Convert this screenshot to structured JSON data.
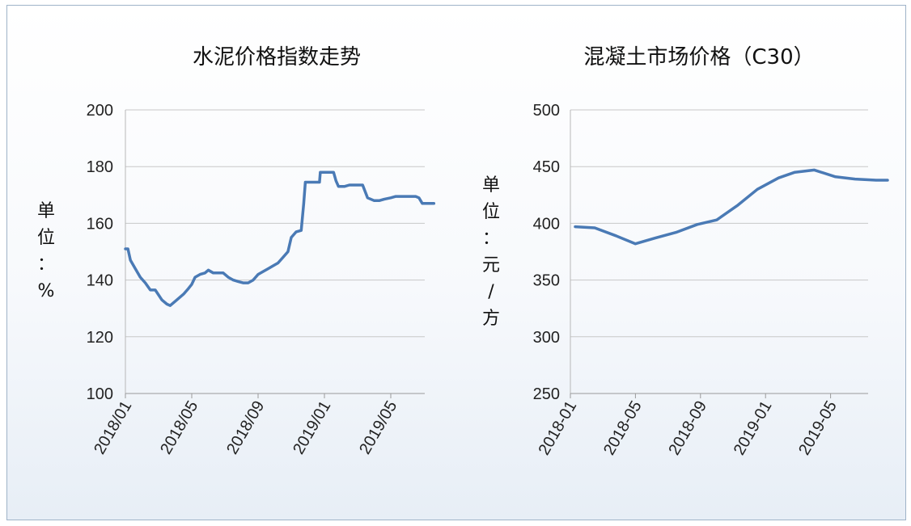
{
  "chart_data": [
    {
      "type": "line",
      "title": "水泥价格指数走势",
      "ylabel": [
        "单",
        "位",
        "：",
        "%"
      ],
      "xlabel": "",
      "ylim": [
        100,
        200
      ],
      "yticks": [
        "100",
        "120",
        "140",
        "160",
        "180",
        "200"
      ],
      "xticks": [
        "2018/01",
        "2018/05",
        "2018/09",
        "2019/01",
        "2019/05"
      ],
      "grid": true,
      "legend": "none",
      "line_color": "#4a7ab5",
      "x_units": "months since 2018/01",
      "series": [
        {
          "x": [
            0,
            0.15,
            0.3,
            0.6,
            0.9,
            1.2,
            1.5,
            1.8,
            2.2,
            2.5,
            2.7,
            3.0,
            3.3,
            3.5,
            3.8,
            4.0,
            4.2,
            4.5,
            4.8,
            5.0,
            5.3,
            5.6,
            5.9,
            6.2,
            6.5,
            6.8,
            7.1,
            7.4,
            7.7,
            8.0,
            8.3,
            8.6,
            8.9,
            9.2,
            9.5,
            9.8,
            10.0,
            10.3,
            10.6,
            10.75,
            10.85,
            11.1,
            11.4,
            11.7,
            11.75,
            12.0,
            12.3,
            12.55,
            12.7,
            12.85,
            13.2,
            13.5,
            13.8,
            14.0,
            14.3,
            14.6,
            15.0,
            15.3,
            15.6,
            16.0,
            16.3,
            16.6,
            16.9,
            17.2,
            17.5,
            17.7,
            17.9,
            18.1,
            18.4,
            18.6
          ],
          "y": [
            151,
            151,
            147,
            144,
            141,
            139,
            136.5,
            136.5,
            133,
            131.5,
            131,
            132.5,
            134,
            135,
            137,
            138.5,
            141,
            142,
            142.5,
            143.5,
            142.5,
            142.5,
            142.5,
            141,
            140,
            139.5,
            139,
            139,
            140,
            142,
            143,
            144,
            145,
            146,
            148,
            150,
            155,
            157,
            157.5,
            167,
            174.5,
            174.5,
            174.5,
            174.5,
            178,
            178,
            178,
            178,
            175,
            173,
            173,
            173.5,
            173.5,
            173.5,
            173.5,
            169,
            168,
            168,
            168.5,
            169,
            169.5,
            169.5,
            169.5,
            169.5,
            169.5,
            169,
            167,
            167,
            167,
            167
          ]
        }
      ]
    },
    {
      "type": "line",
      "title": "混凝土市场价格（C30）",
      "ylabel": [
        "单",
        "位",
        "：",
        "元",
        "/",
        "方"
      ],
      "xlabel": "",
      "ylim": [
        250,
        500
      ],
      "yticks": [
        "250",
        "300",
        "350",
        "400",
        "450",
        "500"
      ],
      "xticks": [
        "2018-01",
        "2018-05",
        "2018-09",
        "2019-01",
        "2019-05"
      ],
      "grid": true,
      "legend": "none",
      "line_color": "#4a7ab5",
      "x_units": "months since 2018-01",
      "series": [
        {
          "x": [
            0.3,
            1.5,
            2.8,
            4.0,
            5.2,
            6.5,
            7.8,
            9.0,
            10.3,
            11.5,
            12.8,
            13.8,
            15.0,
            16.3,
            17.5,
            18.8,
            19.5
          ],
          "y": [
            397,
            396,
            389,
            382,
            387,
            392,
            399,
            403,
            416,
            430,
            440,
            445,
            447,
            441,
            439,
            438,
            438
          ]
        }
      ]
    }
  ]
}
